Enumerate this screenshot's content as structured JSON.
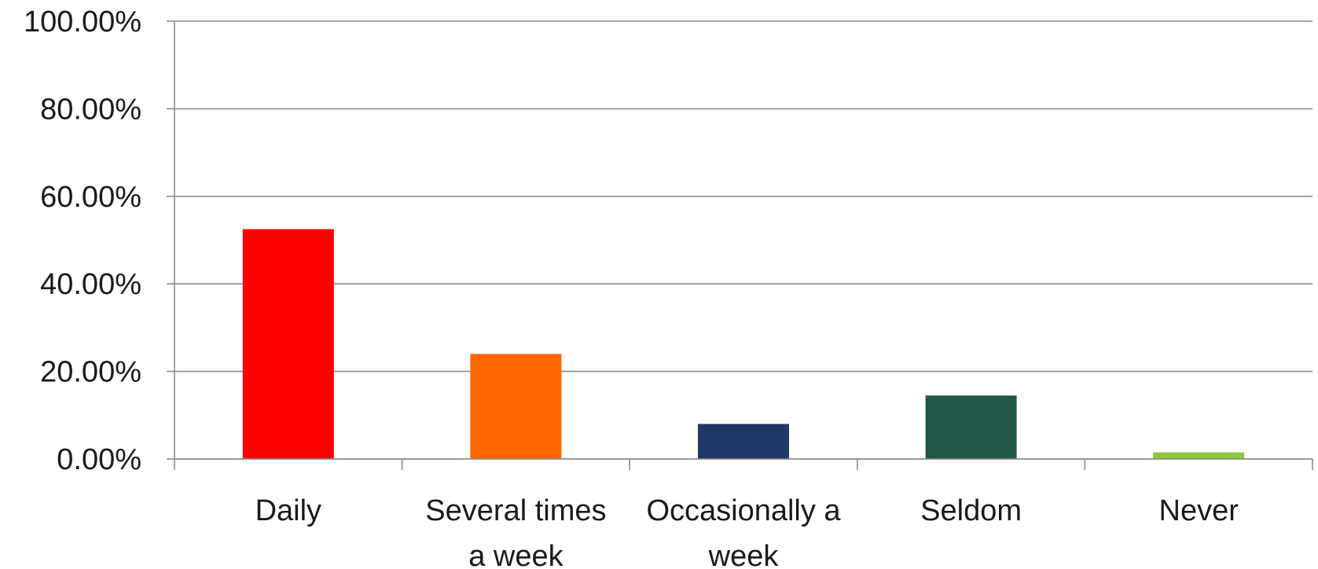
{
  "chart_data": {
    "type": "bar",
    "title": "",
    "xlabel": "",
    "ylabel": "",
    "categories": [
      "Daily",
      "Several times a week",
      "Occasionally a week",
      "Seldom",
      "Never"
    ],
    "category_lines": [
      [
        "Daily"
      ],
      [
        "Several times",
        "a week"
      ],
      [
        "Occasionally a",
        "week"
      ],
      [
        "Seldom"
      ],
      [
        "Never"
      ]
    ],
    "values": [
      52.5,
      24.0,
      8.0,
      14.5,
      1.5
    ],
    "colors": [
      "#ff0000",
      "#ff6600",
      "#1f3864",
      "#215547",
      "#8dc63f"
    ],
    "ylim": [
      0,
      100
    ],
    "yticks": [
      0,
      20,
      40,
      60,
      80,
      100
    ],
    "ytick_labels": [
      "0.00%",
      "20.00%",
      "40.00%",
      "60.00%",
      "80.00%",
      "100.00%"
    ],
    "grid": true,
    "legend": "none"
  }
}
